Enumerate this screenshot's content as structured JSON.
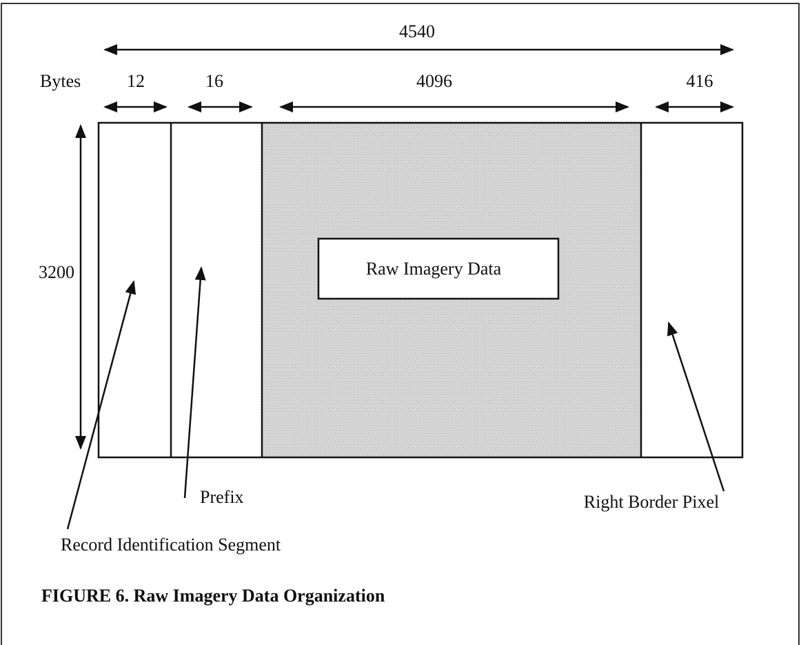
{
  "header": {
    "total_width": 4540,
    "unit_label": "Bytes"
  },
  "segments": [
    {
      "width": 12
    },
    {
      "width": 16
    },
    {
      "width": 4096
    },
    {
      "width": 416
    }
  ],
  "height": 3200,
  "data_box": {
    "label": "Raw Imagery Data"
  },
  "callouts": [
    {
      "label": "Record Identification Segment"
    },
    {
      "label": "Prefix"
    },
    {
      "label": "Right Border Pixel"
    }
  ],
  "caption": "FIGURE 6. Raw Imagery Data Organization"
}
